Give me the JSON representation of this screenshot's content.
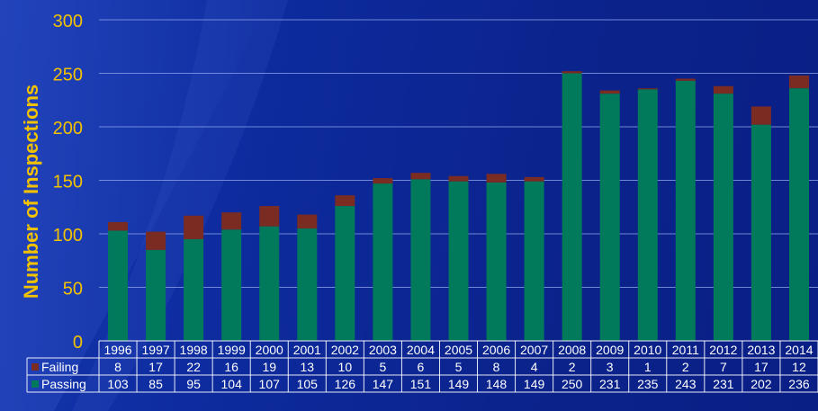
{
  "colors": {
    "passing": "#007a5a",
    "failing": "#7a2c22",
    "axis_text": "#f2c200",
    "table_text": "#ffffff",
    "grid": "#8aa0e8"
  },
  "chart_data": {
    "type": "bar",
    "stacked": true,
    "ylabel": "Number of Inspections",
    "ylim": [
      0,
      300
    ],
    "yticks": [
      0,
      50,
      100,
      150,
      200,
      250,
      300
    ],
    "grid": true,
    "legend": "data-table",
    "categories": [
      "1996",
      "1997",
      "1998",
      "1999",
      "2000",
      "2001",
      "2002",
      "2003",
      "2004",
      "2005",
      "2006",
      "2007",
      "2008",
      "2009",
      "2010",
      "2011",
      "2012",
      "2013",
      "2014"
    ],
    "series": [
      {
        "name": "Failing",
        "values": [
          8,
          17,
          22,
          16,
          19,
          13,
          10,
          5,
          6,
          5,
          8,
          4,
          2,
          3,
          1,
          2,
          7,
          17,
          12
        ]
      },
      {
        "name": "Passing",
        "values": [
          103,
          85,
          95,
          104,
          107,
          105,
          126,
          147,
          151,
          149,
          148,
          149,
          250,
          231,
          235,
          243,
          231,
          202,
          236
        ]
      }
    ]
  }
}
